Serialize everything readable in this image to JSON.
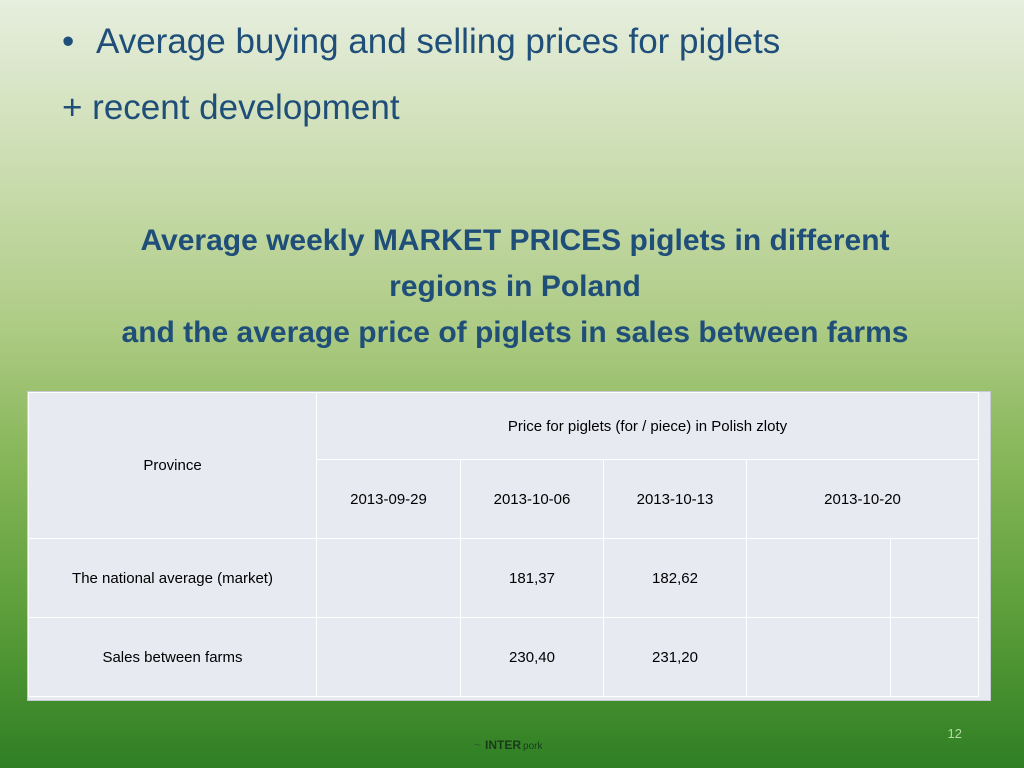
{
  "bullets": {
    "line1": "Average buying and selling prices for piglets",
    "line2": "+ recent development"
  },
  "heading": {
    "line1": "Average weekly MARKET PRICES piglets in different",
    "line2": "regions in Poland",
    "line3": "and the average price of piglets in sales between farms"
  },
  "table": {
    "province_header": "Province",
    "price_header": "Price for piglets (for / piece) in Polish zloty",
    "dates": [
      "2013-09-29",
      "2013-10-06",
      "2013-10-13",
      "2013-10-20"
    ],
    "rows": [
      {
        "label": "The national average (market)",
        "values": [
          "",
          "181,37",
          "182,62",
          "",
          ""
        ]
      },
      {
        "label": "Sales between farms",
        "values": [
          "",
          "230,40",
          "231,20",
          "",
          ""
        ]
      }
    ]
  },
  "footer": {
    "page_number": "12",
    "logo_inter": "INTER",
    "logo_pork": "pork"
  }
}
